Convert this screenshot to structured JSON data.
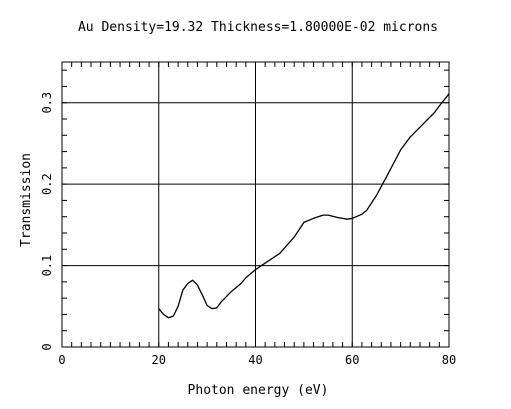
{
  "chart_data": {
    "type": "line",
    "title": "Au Density=19.32 Thickness=1.80000E-02 microns",
    "xlabel": "Photon energy (eV)",
    "ylabel": "Transmission",
    "xlim": [
      0,
      80
    ],
    "ylim": [
      0,
      0.35
    ],
    "x_ticks": [
      {
        "value": 0,
        "label": "0"
      },
      {
        "value": 20,
        "label": "20"
      },
      {
        "value": 40,
        "label": "40"
      },
      {
        "value": 60,
        "label": "60"
      },
      {
        "value": 80,
        "label": "80"
      }
    ],
    "y_ticks": [
      {
        "value": 0,
        "label": "0"
      },
      {
        "value": 0.1,
        "label": "0.1"
      },
      {
        "value": 0.2,
        "label": "0.2"
      },
      {
        "value": 0.3,
        "label": "0.3"
      }
    ],
    "x_minor_step": 2,
    "y_minor_step": 0.02,
    "grid": true,
    "series": [
      {
        "color": "#000000",
        "points": [
          [
            20,
            0.047
          ],
          [
            21,
            0.04
          ],
          [
            22,
            0.036
          ],
          [
            23,
            0.038
          ],
          [
            24,
            0.05
          ],
          [
            25,
            0.07
          ],
          [
            26,
            0.078
          ],
          [
            27,
            0.082
          ],
          [
            28,
            0.076
          ],
          [
            29,
            0.064
          ],
          [
            30,
            0.051
          ],
          [
            31,
            0.047
          ],
          [
            32,
            0.048
          ],
          [
            33,
            0.056
          ],
          [
            35,
            0.068
          ],
          [
            37,
            0.078
          ],
          [
            38,
            0.085
          ],
          [
            40,
            0.095
          ],
          [
            42,
            0.103
          ],
          [
            45,
            0.115
          ],
          [
            48,
            0.135
          ],
          [
            50,
            0.153
          ],
          [
            52,
            0.158
          ],
          [
            54,
            0.162
          ],
          [
            55,
            0.162
          ],
          [
            57,
            0.159
          ],
          [
            59,
            0.157
          ],
          [
            60,
            0.158
          ],
          [
            62,
            0.163
          ],
          [
            63,
            0.168
          ],
          [
            65,
            0.186
          ],
          [
            67,
            0.208
          ],
          [
            70,
            0.242
          ],
          [
            72,
            0.258
          ],
          [
            75,
            0.276
          ],
          [
            77,
            0.288
          ],
          [
            78,
            0.296
          ],
          [
            80,
            0.311
          ]
        ]
      }
    ]
  }
}
